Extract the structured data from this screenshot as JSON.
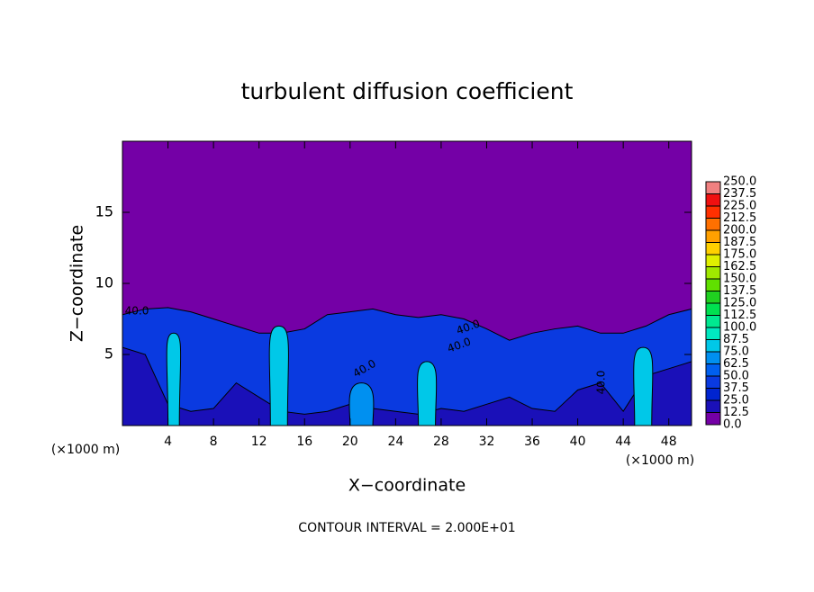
{
  "chart_data": {
    "type": "contour",
    "title": "turbulent diffusion coefficient",
    "x_label": "X−coordinate",
    "y_label": "Z−coordinate",
    "x_unit": "(×1000 m)",
    "footer": "CONTOUR INTERVAL = 2.000E+01",
    "xlim": [
      0,
      50
    ],
    "ylim": [
      0,
      20
    ],
    "xticks": [
      4,
      8,
      12,
      16,
      20,
      24,
      28,
      32,
      36,
      40,
      44,
      48
    ],
    "yticks": [
      5,
      10,
      15
    ],
    "background": {
      "level": 0.0,
      "color": "#7400a6"
    },
    "layers": [
      {
        "level": 37.5,
        "color": "#0a3ae0",
        "x": [
          0,
          2,
          4,
          6,
          8,
          10,
          12,
          14,
          16,
          18,
          20,
          22,
          24,
          26,
          28,
          30,
          32,
          34,
          36,
          38,
          40,
          42,
          44,
          46,
          48,
          50
        ],
        "top": [
          7.8,
          8.2,
          8.3,
          8.0,
          7.5,
          7.0,
          6.5,
          6.5,
          6.8,
          7.8,
          8.0,
          8.2,
          7.8,
          7.6,
          7.8,
          7.5,
          6.8,
          6.0,
          6.5,
          6.8,
          7.0,
          6.5,
          6.5,
          7.0,
          7.8,
          8.2
        ]
      },
      {
        "level": 25.0,
        "color": "#1a10b8",
        "x": [
          0,
          2,
          4,
          6,
          8,
          10,
          12,
          14,
          16,
          18,
          20,
          22,
          24,
          26,
          28,
          30,
          32,
          34,
          36,
          38,
          40,
          42,
          44,
          46,
          48,
          50
        ],
        "top": [
          5.5,
          5.0,
          1.5,
          1.0,
          1.2,
          3.0,
          2.0,
          1.0,
          0.8,
          1.0,
          1.5,
          1.2,
          1.0,
          0.8,
          1.2,
          1.0,
          1.5,
          2.0,
          1.2,
          1.0,
          2.5,
          3.0,
          1.0,
          3.5,
          4.0,
          4.5
        ]
      }
    ],
    "plumes": [
      {
        "level": 75.0,
        "color": "#00c8e8",
        "x": [
          4.0,
          5.0
        ],
        "top": 6.5
      },
      {
        "level": 75.0,
        "color": "#00c8e8",
        "x": [
          13.0,
          14.5
        ],
        "top": 7.0
      },
      {
        "level": 62.5,
        "color": "#0090f0",
        "x": [
          20.0,
          22.0
        ],
        "top": 3.0
      },
      {
        "level": 75.0,
        "color": "#00c8e8",
        "x": [
          26.0,
          27.5
        ],
        "top": 4.5
      },
      {
        "level": 75.0,
        "color": "#00c8e8",
        "x": [
          45.0,
          46.5
        ],
        "top": 5.5
      }
    ],
    "contour_labels": [
      "40.0",
      "40.0",
      "40.0",
      "40.0",
      "40.0"
    ],
    "colorbar": {
      "levels": [
        {
          "value": 0,
          "label": "0.0"
        },
        12.5,
        {
          "value": 25,
          "label": "25.0"
        },
        37.5,
        {
          "value": 50,
          "label": "50.0"
        },
        62.5,
        {
          "value": 75,
          "label": "75.0"
        },
        87.5,
        {
          "value": 100,
          "label": "100.0"
        },
        112.5,
        {
          "value": 125,
          "label": "125.0"
        },
        137.5,
        {
          "value": 150,
          "label": "150.0"
        },
        162.5,
        {
          "value": 175,
          "label": "175.0"
        },
        187.5,
        {
          "value": 200,
          "label": "200.0"
        },
        212.5,
        {
          "value": 225,
          "label": "225.0"
        },
        237.5,
        {
          "value": 250,
          "label": "250.0"
        }
      ],
      "colors": [
        "#7400a6",
        "#1a10b8",
        "#0024d0",
        "#0a3ae0",
        "#0060f0",
        "#0090f0",
        "#00c8e8",
        "#00e8c0",
        "#00e890",
        "#00e050",
        "#20d020",
        "#60e000",
        "#a0e800",
        "#e0f000",
        "#ffd000",
        "#ffa000",
        "#ff7000",
        "#ff3000",
        "#f01010",
        "#f08080"
      ]
    }
  }
}
